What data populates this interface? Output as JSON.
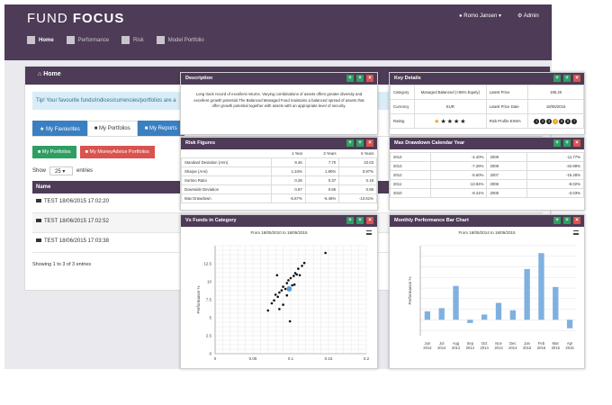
{
  "app": {
    "brand_a": "FUND",
    "brand_b": "FOCUS",
    "user": "Romo Jansen",
    "admin": "Admin"
  },
  "nav": [
    {
      "label": "Home",
      "icon": "home-icon",
      "active": true
    },
    {
      "label": "Performance",
      "icon": "bar-chart-icon"
    },
    {
      "label": "Risk",
      "icon": "flame-icon"
    },
    {
      "label": "Model Portfolio",
      "icon": "folder-icon"
    }
  ],
  "home": {
    "title": "Home",
    "tip": "Tip! Your favourite funds/indices/currencies/portfolios are a",
    "tabs": [
      "My Favourites",
      "My Portfolios",
      "My Reports"
    ],
    "buttons": [
      "My Portfolios",
      "My MoneyAdvice Portfolios"
    ],
    "show_label": "Show",
    "show_value": "25",
    "entries_label": "entries",
    "col_name": "Name",
    "rows": [
      "TEST 18/06/2015 17:02:20",
      "TEST 18/06/2015 17:02:52",
      "TEST 18/06/2015 17:03:38"
    ],
    "showing": "Showing 1 to 3 of 3 entries"
  },
  "description": {
    "title": "Description",
    "text": "Long track record of excellent returns. Varying combinations of assets offers greater diversity and excellent growth potential.The Balanced Managed Fund maintains a balanced spread of assets that offer growth potential together with assets with an appropriate level of security."
  },
  "key_details": {
    "title": "Key Details",
    "category_label": "Category",
    "category_value": "Managed Balanced (<65% Equity)",
    "latest_price_label": "Latest Price",
    "latest_price_value": "195.20",
    "currency_label": "Currency",
    "currency_value": "EUR",
    "latest_price_date_label": "Latest Price Date",
    "latest_price_date_value": "18/05/2015",
    "rating_label": "Rating",
    "rating_stars": 1,
    "rating_max": 5,
    "risk_label": "Risk Profile ESMA",
    "risk_levels": [
      "1",
      "2",
      "3",
      "4",
      "5",
      "6",
      "7"
    ],
    "risk_selected": 4
  },
  "risk_figures": {
    "title": "Risk Figures",
    "headers": [
      "1 Year",
      "3 Years",
      "5 Years"
    ],
    "rows": [
      {
        "label": "Standard Deviation (Ann)",
        "values": [
          "9.46",
          "7.70",
          "10.03"
        ]
      },
      {
        "label": "Sharpe (Ann)",
        "values": [
          "1.34%",
          "1.90%",
          "0.97%"
        ]
      },
      {
        "label": "Sortino Ratio",
        "values": [
          "0.28",
          "0.37",
          "0.18"
        ]
      },
      {
        "label": "Downside Deviation",
        "values": [
          "0.87",
          "0.65",
          "0.95"
        ]
      },
      {
        "label": "Max Drawdown",
        "values": [
          "-5.67%",
          "-6.46%",
          "-13.61%"
        ]
      }
    ]
  },
  "max_drawdown": {
    "title": "Max Drawdown Calendar Year",
    "rows": [
      [
        "2014",
        "-4.40%",
        "2009",
        "-11.77%"
      ],
      [
        "2013",
        "-7.26%",
        "2008",
        "-34.99%"
      ],
      [
        "2012",
        "-5.60%",
        "2007",
        "-15.28%"
      ],
      [
        "2011",
        "-13.94%",
        "2006",
        "-8.02%"
      ],
      [
        "2010",
        "-8.41%",
        "2005",
        "-3.03%"
      ]
    ]
  },
  "scatter_panel": {
    "title": "Vs Funds in Category",
    "subtitle": "From 18/05/2010 to 18/05/2015",
    "ylabel": "Performance %"
  },
  "bar_panel": {
    "title": "Monthly Performance Bar Chart",
    "subtitle": "From 18/05/2014 to 18/05/2015",
    "ylabel": "Performance %"
  },
  "colors": {
    "header": "#4e3b57",
    "bar": "#7fb1e0",
    "green": "#2f9e63",
    "red": "#d9534f",
    "blue": "#3a7fc1"
  },
  "chart_data": [
    {
      "type": "scatter",
      "title": "Vs Funds in Category",
      "subtitle": "From 18/05/2010 to 18/05/2015",
      "ylabel": "Performance %",
      "xlim": [
        0,
        0.2
      ],
      "ylim": [
        0,
        15
      ],
      "x_ticks": [
        "0",
        "0.05",
        "0.1",
        "0.15",
        "0.2"
      ],
      "y_ticks": [
        "0",
        "2.5",
        "5",
        "7.5",
        "10",
        "12.5"
      ],
      "points": [
        [
          0.075,
          7
        ],
        [
          0.078,
          7.4
        ],
        [
          0.08,
          8.2
        ],
        [
          0.083,
          7.9
        ],
        [
          0.085,
          8.5
        ],
        [
          0.088,
          8.8
        ],
        [
          0.09,
          9.3
        ],
        [
          0.093,
          9.0
        ],
        [
          0.095,
          9.8
        ],
        [
          0.097,
          10.2
        ],
        [
          0.1,
          10.5
        ],
        [
          0.102,
          9.5
        ],
        [
          0.104,
          10.8
        ],
        [
          0.106,
          11.2
        ],
        [
          0.108,
          11.0
        ],
        [
          0.11,
          11.8
        ],
        [
          0.112,
          10.9
        ],
        [
          0.115,
          12.2
        ],
        [
          0.118,
          12.6
        ],
        [
          0.09,
          6.8
        ],
        [
          0.085,
          6.2
        ],
        [
          0.07,
          6.0
        ],
        [
          0.082,
          10.9
        ],
        [
          0.099,
          4.5
        ],
        [
          0.146,
          14.0
        ],
        [
          0.095,
          8.1
        ],
        [
          0.105,
          9.6
        ]
      ],
      "highlight": [
        0.098,
        9.0
      ]
    },
    {
      "type": "bar",
      "title": "Monthly Performance Bar Chart",
      "subtitle": "From 18/05/2014 to 18/05/2015",
      "ylabel": "Performance %",
      "categories": [
        "Jun 2014",
        "Jul 2014",
        "Aug 2014",
        "Sep 2014",
        "Oct 2014",
        "Nov 2014",
        "Dec 2014",
        "Jan 2015",
        "Feb 2015",
        "Mar 2015",
        "Apr 2015"
      ],
      "values": [
        0.8,
        1.1,
        3.2,
        -0.3,
        0.5,
        1.6,
        0.9,
        4.8,
        6.3,
        3.1,
        -0.8
      ],
      "ylim": [
        -1.5,
        7
      ]
    }
  ]
}
